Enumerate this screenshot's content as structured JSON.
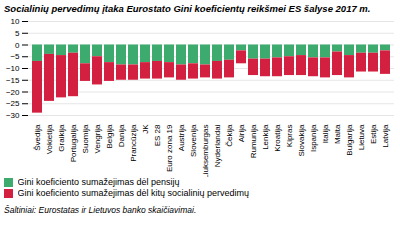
{
  "chart_data": {
    "type": "bar",
    "title": "Socialinių pervedimų įtaka Eurostato Gini koeficientų reikšmei ES šalyse 2017 m.",
    "footnote": "Šaltiniai: Eurostatas ir Lietuvos banko skaičiavimai.",
    "categories": [
      "Švedija",
      "Vokietija",
      "Graikija",
      "Portugalija",
      "Suomija",
      "Vengrija",
      "Belgija",
      "Danija",
      "Prancūzija",
      "JK",
      "ES 28",
      "Euro zona 19",
      "Austrija",
      "Slovenija",
      "Liuksemburgas",
      "Nyderlandai",
      "Čekija",
      "Airija",
      "Rumunija",
      "Lenkija",
      "Kroatija",
      "Kipras",
      "Slovakija",
      "Ispanija",
      "Italija",
      "Malta",
      "Bulgarija",
      "Lietuva",
      "Estija",
      "Latvija"
    ],
    "series": [
      {
        "name": "Gini koeficiento sumažejimas dėl pensijų",
        "color": "#3DAA6E",
        "values": [
          -7.0,
          -4.0,
          -4.5,
          -3.5,
          -8.0,
          -5.0,
          -7.5,
          -8.5,
          -8.5,
          -7.5,
          -7.0,
          -7.5,
          -8.5,
          -8.0,
          -8.5,
          -7.0,
          -6.5,
          -2.5,
          -6.0,
          -6.0,
          -5.5,
          -5.0,
          -4.5,
          -5.5,
          -5.5,
          -3.0,
          -4.5,
          -3.5,
          -3.5,
          -2.5
        ]
      },
      {
        "name": "Gini koeficiento sumažejimas dėl kitų socialinių pervedimų",
        "color": "#D42040",
        "values": [
          -22.0,
          -20.0,
          -18.0,
          -18.5,
          -7.5,
          -12.0,
          -8.0,
          -6.5,
          -6.5,
          -7.0,
          -7.5,
          -6.5,
          -6.5,
          -6.5,
          -5.5,
          -7.5,
          -7.5,
          -5.5,
          -7.0,
          -7.5,
          -8.0,
          -8.0,
          -8.5,
          -8.0,
          -8.5,
          -10.0,
          -9.5,
          -8.0,
          -8.0,
          -10.0
        ]
      }
    ],
    "stacked": true,
    "ylim": [
      -30,
      10
    ],
    "yticks": [
      -30,
      -25,
      -20,
      -15,
      -10,
      -5,
      0,
      5,
      10
    ],
    "grid": true,
    "legend": "bottom"
  }
}
